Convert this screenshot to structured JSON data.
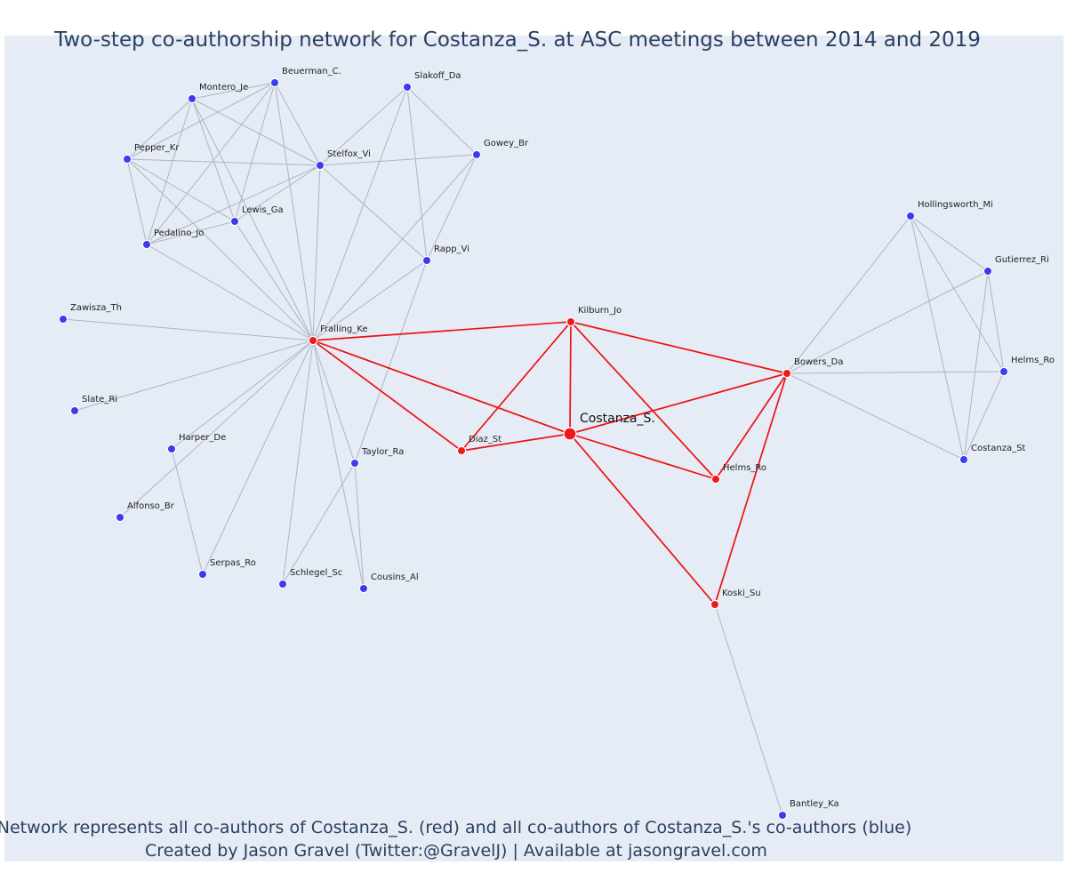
{
  "title": "Two-step co-authorship network for Costanza_S. at ASC meetings between 2014 and 2019",
  "caption_line1": "Network represents all co-authors of Costanza_S. (red) and all co-authors of Costanza_S.'s co-authors (blue)",
  "caption_line2": "Created by Jason Gravel (Twitter:@GravelJ) | Available at jasongravel.com",
  "colors": {
    "plot_background": "#e5ecf6",
    "first_step_nodes": "#ee1a1a",
    "second_step_nodes": "#3b3bf0",
    "first_step_edges": "#ee1111",
    "other_edges": "#b0b4c0",
    "text": "#2a3f5f"
  },
  "center_node": "Costanza_S.",
  "nodes": [
    {
      "id": "Costanza_S.",
      "group": "center"
    },
    {
      "id": "Fralling_Ke",
      "group": "red"
    },
    {
      "id": "Kilburn_Jo",
      "group": "red"
    },
    {
      "id": "Diaz_St",
      "group": "red"
    },
    {
      "id": "Bowers_Da",
      "group": "red"
    },
    {
      "id": "Helms_Ro ",
      "group": "red"
    },
    {
      "id": "Koski_Su",
      "group": "red"
    },
    {
      "id": "Beuerman_C.",
      "group": "blue"
    },
    {
      "id": "Montero_Je",
      "group": "blue"
    },
    {
      "id": "Pepper_Kr",
      "group": "blue"
    },
    {
      "id": "Stelfox_Vi",
      "group": "blue"
    },
    {
      "id": "Lewis_Ga",
      "group": "blue"
    },
    {
      "id": "Pedalino_Jo",
      "group": "blue"
    },
    {
      "id": "Slakoff_Da",
      "group": "blue"
    },
    {
      "id": "Gowey_Br",
      "group": "blue"
    },
    {
      "id": "Rapp_Vi",
      "group": "blue"
    },
    {
      "id": "Zawisza_Th",
      "group": "blue"
    },
    {
      "id": "Slate_Ri",
      "group": "blue"
    },
    {
      "id": "Harper_De",
      "group": "blue"
    },
    {
      "id": "Alfonso_Br",
      "group": "blue"
    },
    {
      "id": "Serpas_Ro",
      "group": "blue"
    },
    {
      "id": "Schlegel_Sc",
      "group": "blue"
    },
    {
      "id": "Taylor_Ra",
      "group": "blue"
    },
    {
      "id": "Cousins_Al",
      "group": "blue"
    },
    {
      "id": "Hollingsworth_Mi",
      "group": "blue"
    },
    {
      "id": "Gutierrez_Ri",
      "group": "blue"
    },
    {
      "id": "Helms_Ro",
      "group": "blue"
    },
    {
      "id": "Costanza_St",
      "group": "blue"
    },
    {
      "id": "Bantley_Ka",
      "group": "blue"
    }
  ],
  "edges": [
    [
      "Costanza_S.",
      "Fralling_Ke"
    ],
    [
      "Costanza_S.",
      "Kilburn_Jo"
    ],
    [
      "Costanza_S.",
      "Diaz_St"
    ],
    [
      "Costanza_S.",
      "Bowers_Da"
    ],
    [
      "Costanza_S.",
      "Helms_Ro "
    ],
    [
      "Costanza_S.",
      "Koski_Su"
    ],
    [
      "Fralling_Ke",
      "Kilburn_Jo"
    ],
    [
      "Fralling_Ke",
      "Diaz_St"
    ],
    [
      "Kilburn_Jo",
      "Diaz_St"
    ],
    [
      "Kilburn_Jo",
      "Bowers_Da"
    ],
    [
      "Kilburn_Jo",
      "Helms_Ro "
    ],
    [
      "Bowers_Da",
      "Helms_Ro "
    ],
    [
      "Bowers_Da",
      "Koski_Su"
    ],
    [
      "Fralling_Ke",
      "Beuerman_C."
    ],
    [
      "Fralling_Ke",
      "Montero_Je"
    ],
    [
      "Fralling_Ke",
      "Pepper_Kr"
    ],
    [
      "Fralling_Ke",
      "Stelfox_Vi"
    ],
    [
      "Fralling_Ke",
      "Lewis_Ga"
    ],
    [
      "Fralling_Ke",
      "Pedalino_Jo"
    ],
    [
      "Fralling_Ke",
      "Slakoff_Da"
    ],
    [
      "Fralling_Ke",
      "Gowey_Br"
    ],
    [
      "Fralling_Ke",
      "Rapp_Vi"
    ],
    [
      "Fralling_Ke",
      "Zawisza_Th"
    ],
    [
      "Fralling_Ke",
      "Slate_Ri"
    ],
    [
      "Fralling_Ke",
      "Harper_De"
    ],
    [
      "Fralling_Ke",
      "Alfonso_Br"
    ],
    [
      "Fralling_Ke",
      "Serpas_Ro"
    ],
    [
      "Fralling_Ke",
      "Schlegel_Sc"
    ],
    [
      "Fralling_Ke",
      "Taylor_Ra"
    ],
    [
      "Fralling_Ke",
      "Cousins_Al"
    ],
    [
      "Beuerman_C.",
      "Montero_Je"
    ],
    [
      "Beuerman_C.",
      "Pepper_Kr"
    ],
    [
      "Beuerman_C.",
      "Stelfox_Vi"
    ],
    [
      "Beuerman_C.",
      "Lewis_Ga"
    ],
    [
      "Beuerman_C.",
      "Pedalino_Jo"
    ],
    [
      "Montero_Je",
      "Pepper_Kr"
    ],
    [
      "Montero_Je",
      "Stelfox_Vi"
    ],
    [
      "Montero_Je",
      "Lewis_Ga"
    ],
    [
      "Montero_Je",
      "Pedalino_Jo"
    ],
    [
      "Pepper_Kr",
      "Stelfox_Vi"
    ],
    [
      "Pepper_Kr",
      "Lewis_Ga"
    ],
    [
      "Pepper_Kr",
      "Pedalino_Jo"
    ],
    [
      "Stelfox_Vi",
      "Lewis_Ga"
    ],
    [
      "Stelfox_Vi",
      "Pedalino_Jo"
    ],
    [
      "Stelfox_Vi",
      "Slakoff_Da"
    ],
    [
      "Stelfox_Vi",
      "Gowey_Br"
    ],
    [
      "Stelfox_Vi",
      "Rapp_Vi"
    ],
    [
      "Lewis_Ga",
      "Pedalino_Jo"
    ],
    [
      "Slakoff_Da",
      "Gowey_Br"
    ],
    [
      "Slakoff_Da",
      "Rapp_Vi"
    ],
    [
      "Gowey_Br",
      "Rapp_Vi"
    ],
    [
      "Rapp_Vi",
      "Taylor_Ra"
    ],
    [
      "Harper_De",
      "Serpas_Ro"
    ],
    [
      "Taylor_Ra",
      "Schlegel_Sc"
    ],
    [
      "Taylor_Ra",
      "Cousins_Al"
    ],
    [
      "Bowers_Da",
      "Hollingsworth_Mi"
    ],
    [
      "Bowers_Da",
      "Gutierrez_Ri"
    ],
    [
      "Bowers_Da",
      "Helms_Ro"
    ],
    [
      "Bowers_Da",
      "Costanza_St"
    ],
    [
      "Hollingsworth_Mi",
      "Gutierrez_Ri"
    ],
    [
      "Hollingsworth_Mi",
      "Helms_Ro"
    ],
    [
      "Hollingsworth_Mi",
      "Costanza_St"
    ],
    [
      "Gutierrez_Ri",
      "Helms_Ro"
    ],
    [
      "Gutierrez_Ri",
      "Costanza_St"
    ],
    [
      "Helms_Ro",
      "Costanza_St"
    ],
    [
      "Koski_Su",
      "Bantley_Ka"
    ]
  ]
}
